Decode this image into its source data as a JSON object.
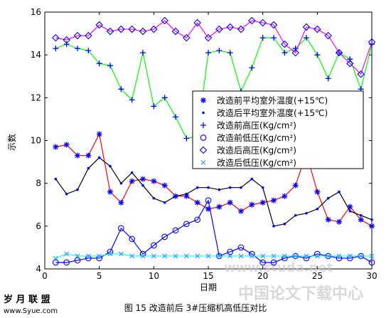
{
  "chart_data": {
    "type": "line",
    "title": "",
    "xlabel": "日期",
    "ylabel": "示数",
    "xlim": [
      0,
      30
    ],
    "ylim": [
      4,
      16
    ],
    "xticks": [
      0,
      5,
      10,
      15,
      20,
      25,
      30
    ],
    "yticks": [
      4,
      6,
      8,
      10,
      12,
      14,
      16
    ],
    "grid": false,
    "legend_position": "center-right",
    "x": [
      1,
      2,
      3,
      4,
      5,
      6,
      7,
      8,
      9,
      10,
      11,
      12,
      13,
      14,
      15,
      16,
      17,
      18,
      19,
      20,
      21,
      22,
      23,
      24,
      25,
      26,
      27,
      28,
      29,
      30
    ],
    "series": [
      {
        "name": "改造前平均室外温度(+15℃)",
        "marker": "star",
        "color": "#ff0000",
        "markerColor": "#0000ff",
        "values": [
          9.7,
          9.8,
          9.3,
          9.3,
          10.3,
          7.6,
          7.1,
          8.1,
          8.2,
          8.1,
          7.9,
          7.4,
          7.4,
          7.1,
          6.8,
          6.9,
          7.1,
          6.7,
          7.0,
          7.1,
          7.2,
          7.4,
          7.9,
          9.4,
          7.6,
          6.3,
          6.2,
          6.9,
          6.3,
          6.0
        ]
      },
      {
        "name": "改造后平均室外温度(+15℃)",
        "marker": "dot",
        "color": "#000000",
        "markerColor": "#0000ff",
        "values": [
          8.2,
          7.5,
          7.7,
          8.7,
          9.2,
          8.8,
          8.0,
          8.5,
          7.9,
          7.3,
          7.1,
          7.4,
          7.5,
          7.8,
          7.8,
          7.7,
          7.8,
          7.8,
          8.2,
          7.8,
          6.0,
          6.1,
          6.5,
          6.6,
          6.8,
          7.3,
          7.6,
          6.7,
          6.5,
          6.3
        ]
      },
      {
        "name": "改造前高压(Kg/cm²)",
        "marker": "plus",
        "color": "#00ff00",
        "markerColor": "#0000ff",
        "values": [
          14.3,
          14.5,
          14.3,
          14.2,
          13.6,
          13.5,
          12.4,
          11.9,
          14.1,
          11.6,
          12.0,
          11.1,
          10.1,
          10.2,
          14.1,
          14.2,
          14.1,
          12.3,
          13.4,
          14.8,
          14.8,
          14.1,
          14.3,
          14.8,
          14.0,
          12.9,
          14.1,
          13.8,
          12.4,
          14.5
        ]
      },
      {
        "name": "改造前低压(Kg/cm²)",
        "marker": "circle",
        "color": "#0000ff",
        "markerColor": "#0000ff",
        "values": [
          4.3,
          4.3,
          4.4,
          4.5,
          4.5,
          4.8,
          5.9,
          5.4,
          4.7,
          5.1,
          5.5,
          5.8,
          6.1,
          6.3,
          7.2,
          4.6,
          4.8,
          5.0,
          4.7,
          4.3,
          4.3,
          4.5,
          4.6,
          4.5,
          4.7,
          4.6,
          4.5,
          4.5,
          4.6,
          4.3
        ]
      },
      {
        "name": "改造后高压(Kg/cm²)",
        "marker": "diamond",
        "color": "#ff00ff",
        "markerColor": "#0000ff",
        "values": [
          14.8,
          14.7,
          14.9,
          14.9,
          15.4,
          15.1,
          15.2,
          15.2,
          15.1,
          15.2,
          15.6,
          15.1,
          14.8,
          15.5,
          14.8,
          15.2,
          15.3,
          15.2,
          15.6,
          15.5,
          15.4,
          14.5,
          14.1,
          15.3,
          15.2,
          14.9,
          14.1,
          13.6,
          13.1,
          14.6
        ]
      },
      {
        "name": "改造后低压(Kg/cm²)",
        "marker": "x",
        "color": "#00ffff",
        "markerColor": "#3399ff",
        "values": [
          4.5,
          4.7,
          4.6,
          4.6,
          4.6,
          4.7,
          4.7,
          4.6,
          4.6,
          4.6,
          4.6,
          4.6,
          4.6,
          4.6,
          4.6,
          4.6,
          4.6,
          4.6,
          4.6,
          4.6,
          4.6,
          4.6,
          4.6,
          4.6,
          4.6,
          4.6,
          4.6,
          4.6,
          4.6,
          4.6
        ]
      }
    ]
  },
  "caption": "图 15  改造前后 3#压缩机高低压对比",
  "logo_text": "岁 月 联 盟",
  "logo_url_text": "www.Syue.com",
  "watermark_text": "中国论文下载中心",
  "watermark_url_text": "www.studa.net"
}
